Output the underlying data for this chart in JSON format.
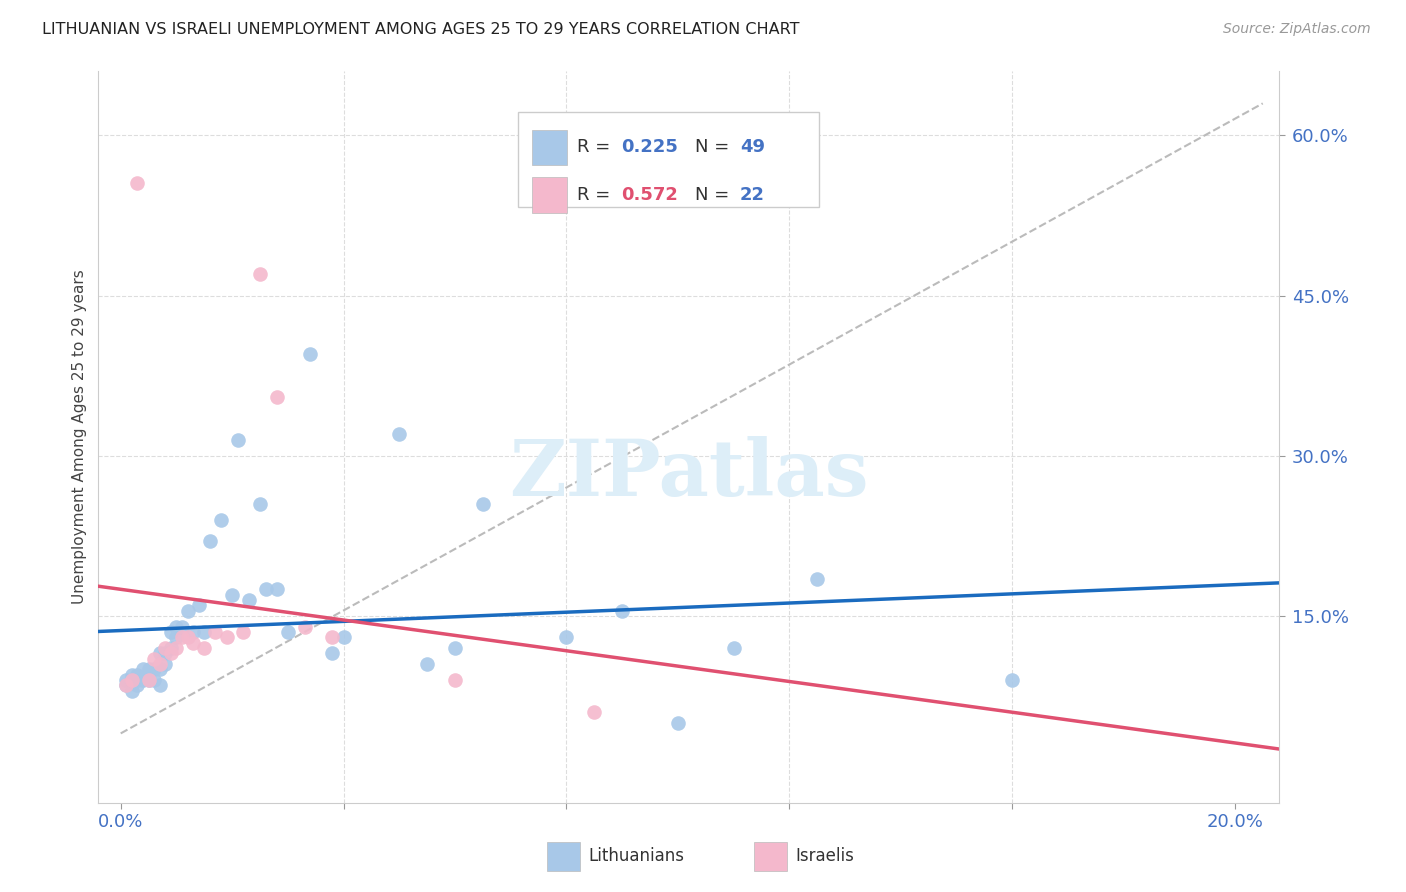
{
  "title": "LITHUANIAN VS ISRAELI UNEMPLOYMENT AMONG AGES 25 TO 29 YEARS CORRELATION CHART",
  "source": "Source: ZipAtlas.com",
  "ylabel": "Unemployment Among Ages 25 to 29 years",
  "blue_color": "#a8c8e8",
  "pink_color": "#f4b8cc",
  "blue_line_color": "#1a6bbf",
  "pink_line_color": "#e05070",
  "ref_line_color": "#bbbbbb",
  "grid_color": "#dddddd",
  "tick_color": "#4472c4",
  "title_color": "#222222",
  "source_color": "#999999",
  "watermark_text": "ZIPatlas",
  "watermark_color": "#ddeef8",
  "lith_x": [
    0.001,
    0.001,
    0.002,
    0.002,
    0.003,
    0.003,
    0.003,
    0.004,
    0.004,
    0.005,
    0.005,
    0.006,
    0.006,
    0.007,
    0.007,
    0.007,
    0.008,
    0.008,
    0.009,
    0.009,
    0.01,
    0.01,
    0.011,
    0.012,
    0.013,
    0.014,
    0.015,
    0.016,
    0.018,
    0.02,
    0.021,
    0.023,
    0.025,
    0.026,
    0.028,
    0.03,
    0.034,
    0.038,
    0.04,
    0.05,
    0.055,
    0.06,
    0.065,
    0.08,
    0.09,
    0.1,
    0.11,
    0.125,
    0.16
  ],
  "lith_y": [
    0.085,
    0.09,
    0.08,
    0.095,
    0.085,
    0.09,
    0.095,
    0.09,
    0.1,
    0.09,
    0.1,
    0.09,
    0.1,
    0.085,
    0.1,
    0.115,
    0.105,
    0.115,
    0.12,
    0.135,
    0.13,
    0.14,
    0.14,
    0.155,
    0.135,
    0.16,
    0.135,
    0.22,
    0.24,
    0.17,
    0.315,
    0.165,
    0.255,
    0.175,
    0.175,
    0.135,
    0.395,
    0.115,
    0.13,
    0.32,
    0.105,
    0.12,
    0.255,
    0.13,
    0.155,
    0.05,
    0.12,
    0.185,
    0.09
  ],
  "isr_x": [
    0.001,
    0.002,
    0.003,
    0.005,
    0.006,
    0.007,
    0.008,
    0.009,
    0.01,
    0.011,
    0.012,
    0.013,
    0.015,
    0.017,
    0.019,
    0.022,
    0.025,
    0.028,
    0.033,
    0.038,
    0.06,
    0.085
  ],
  "isr_y": [
    0.085,
    0.09,
    0.555,
    0.09,
    0.11,
    0.105,
    0.12,
    0.115,
    0.12,
    0.13,
    0.13,
    0.125,
    0.12,
    0.135,
    0.13,
    0.135,
    0.47,
    0.355,
    0.14,
    0.13,
    0.09,
    0.06
  ],
  "xlim": [
    -0.004,
    0.208
  ],
  "ylim": [
    -0.025,
    0.66
  ],
  "x_ticks": [
    0.0,
    0.04,
    0.08,
    0.12,
    0.16,
    0.2
  ],
  "y_ticks_right": [
    0.15,
    0.3,
    0.45,
    0.6
  ],
  "legend_r1": "R = 0.225",
  "legend_n1": "N = 49",
  "legend_r2": "R = 0.572",
  "legend_n2": "N = 22"
}
